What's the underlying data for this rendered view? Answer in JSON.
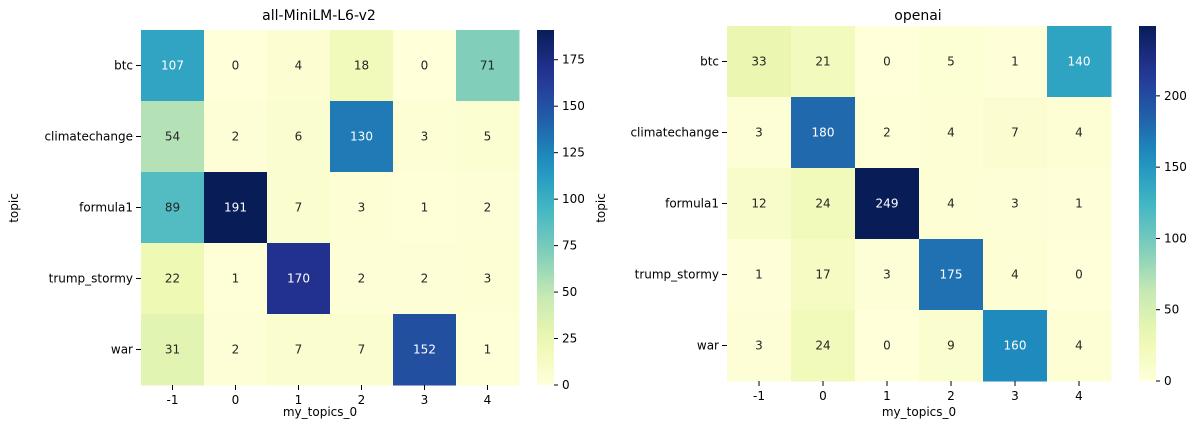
{
  "chart_data": [
    {
      "type": "heatmap",
      "title": "all-MiniLM-L6-v2",
      "xlabel": "my_topics_0",
      "ylabel": "topic",
      "x_categories": [
        "-1",
        "0",
        "1",
        "2",
        "3",
        "4"
      ],
      "y_categories": [
        "btc",
        "climatechange",
        "formula1",
        "trump_stormy",
        "war"
      ],
      "values": [
        [
          107,
          0,
          4,
          18,
          0,
          71
        ],
        [
          54,
          2,
          6,
          130,
          3,
          5
        ],
        [
          89,
          191,
          7,
          3,
          1,
          2
        ],
        [
          22,
          1,
          170,
          2,
          2,
          3
        ],
        [
          31,
          2,
          7,
          7,
          152,
          1
        ]
      ],
      "colorbar": {
        "min": 0,
        "max": 191,
        "ticks": [
          0,
          25,
          50,
          75,
          100,
          125,
          150,
          175
        ]
      },
      "colormap": "YlGnBu"
    },
    {
      "type": "heatmap",
      "title": "openai",
      "xlabel": "my_topics_0",
      "ylabel": "topic",
      "x_categories": [
        "-1",
        "0",
        "1",
        "2",
        "3",
        "4"
      ],
      "y_categories": [
        "btc",
        "climatechange",
        "formula1",
        "trump_stormy",
        "war"
      ],
      "values": [
        [
          33,
          21,
          0,
          5,
          1,
          140
        ],
        [
          3,
          180,
          2,
          4,
          7,
          4
        ],
        [
          12,
          24,
          249,
          4,
          3,
          1
        ],
        [
          1,
          17,
          3,
          175,
          4,
          0
        ],
        [
          3,
          24,
          0,
          9,
          160,
          4
        ]
      ],
      "colorbar": {
        "min": 0,
        "max": 249,
        "ticks": [
          0,
          50,
          100,
          150,
          200
        ]
      },
      "colormap": "YlGnBu"
    }
  ]
}
